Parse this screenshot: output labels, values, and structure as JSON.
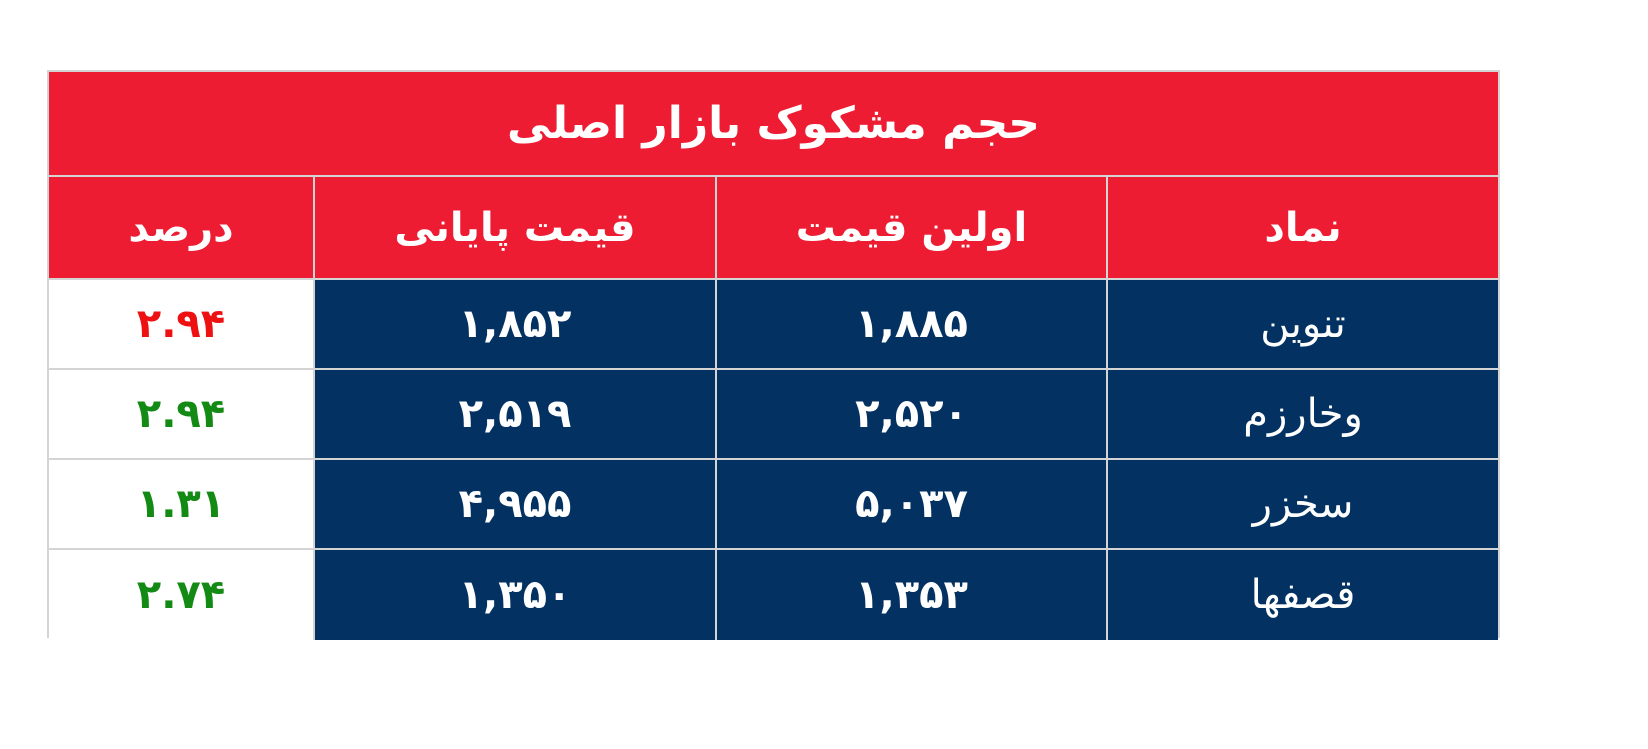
{
  "title": "حجم مشکوک بازار اصلی",
  "headers": [
    "نماد",
    "اولین قیمت",
    "قیمت پایانی",
    "درصد"
  ],
  "colors": {
    "header_bg": "#ed1c32",
    "cell_bg": "#033262",
    "positive": "#138a13",
    "negative": "#ee1111"
  },
  "rows": [
    {
      "symbol": "تنوین",
      "first": "۱,۸۸۵",
      "last": "۱,۸۵۲",
      "pct": "۲.۹۴",
      "pct_color": "#ee1111"
    },
    {
      "symbol": "وخارزم",
      "first": "۲,۵۲۰",
      "last": "۲,۵۱۹",
      "pct": "۲.۹۴",
      "pct_color": "#138a13"
    },
    {
      "symbol": "سخزر",
      "first": "۵,۰۳۷",
      "last": "۴,۹۵۵",
      "pct": "۱.۳۱",
      "pct_color": "#138a13"
    },
    {
      "symbol": "قصفها",
      "first": "۱,۳۵۳",
      "last": "۱,۳۵۰",
      "pct": "۲.۷۴",
      "pct_color": "#138a13"
    }
  ]
}
